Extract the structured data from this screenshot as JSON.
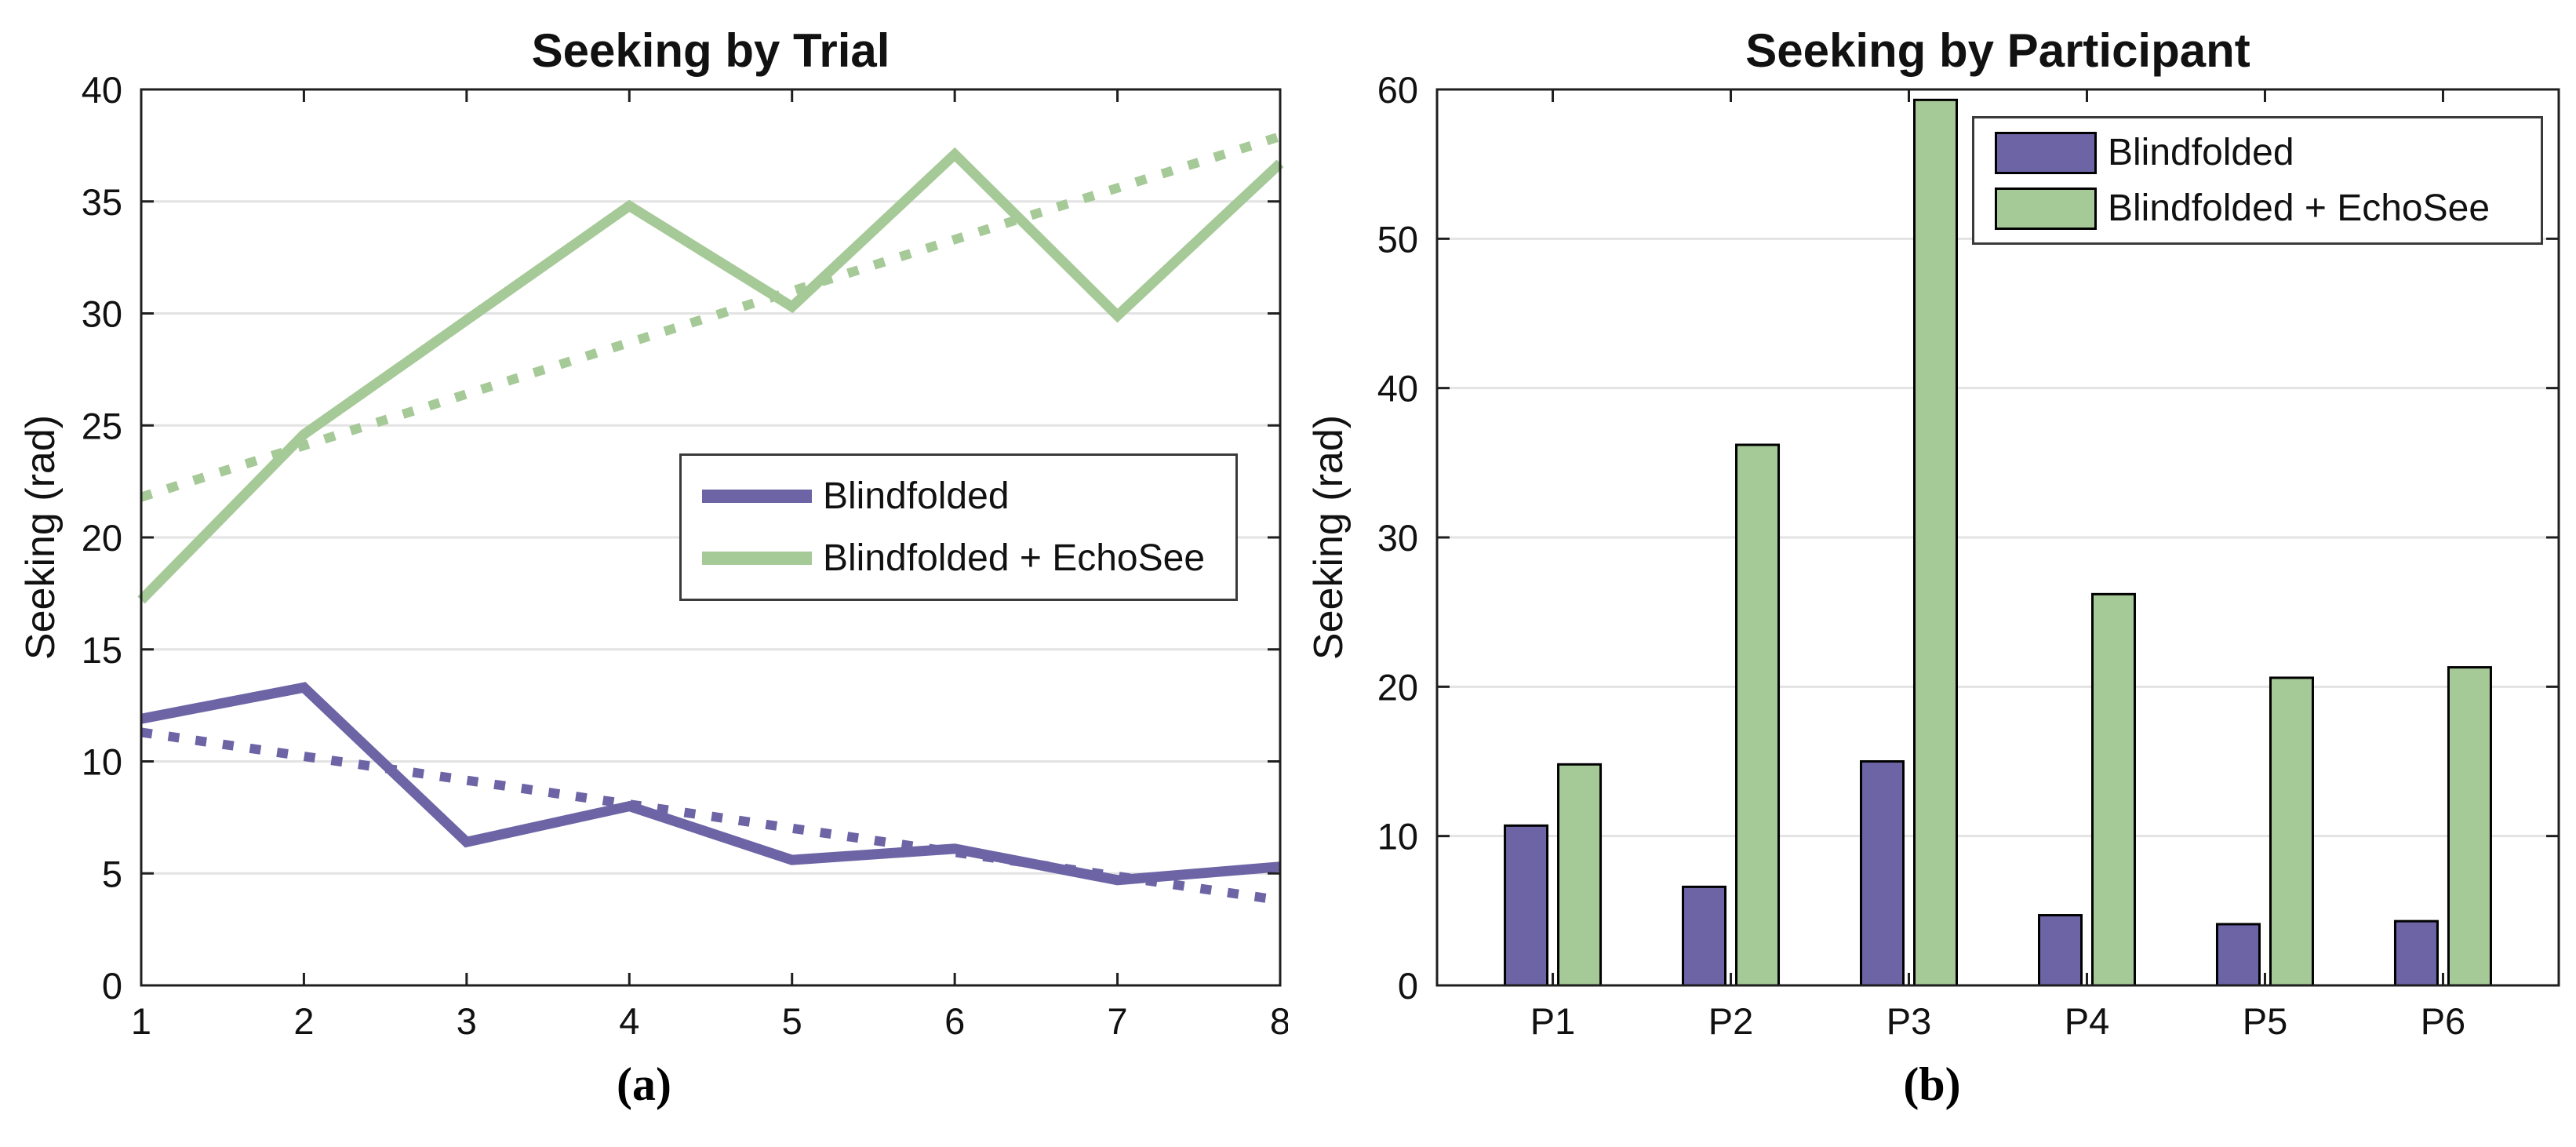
{
  "colors": {
    "purple": "#6C64A5",
    "green": "#A6C998",
    "grid": "#E3E3E3",
    "axis": "#1F1F1F",
    "bar_edge": "#000000",
    "text": "#111111"
  },
  "captions": {
    "a": "(a)",
    "b": "(b)"
  },
  "chart_data": [
    {
      "type": "line",
      "panel": "a",
      "title": "Seeking by Trial",
      "xlabel": "",
      "ylabel": "Seeking (rad)",
      "xlim": [
        1,
        8
      ],
      "ylim": [
        0,
        40
      ],
      "xticks": [
        1,
        2,
        3,
        4,
        5,
        6,
        7,
        8
      ],
      "yticks": [
        0,
        5,
        10,
        15,
        20,
        25,
        30,
        35,
        40
      ],
      "grid": "horizontal",
      "legend_position": "middle-right-inside",
      "series": [
        {
          "name": "Blindfolded",
          "line_style": "solid",
          "color": "purple",
          "in_legend": true,
          "x": [
            1,
            2,
            3,
            4,
            5,
            6,
            7,
            8
          ],
          "values": [
            11.9,
            13.3,
            6.4,
            8.0,
            5.6,
            6.1,
            4.7,
            5.3
          ]
        },
        {
          "name": "Blindfolded + EchoSee",
          "line_style": "solid",
          "color": "green",
          "in_legend": true,
          "x": [
            1,
            2,
            3,
            4,
            5,
            6,
            7,
            8
          ],
          "values": [
            17.2,
            24.6,
            29.7,
            34.8,
            30.3,
            37.1,
            29.9,
            36.7
          ]
        },
        {
          "name": "Blindfolded linear trend",
          "line_style": "dotted",
          "color": "purple",
          "in_legend": false,
          "x": [
            1,
            8
          ],
          "values": [
            11.3,
            3.8
          ]
        },
        {
          "name": "Blindfolded + EchoSee linear trend",
          "line_style": "dotted",
          "color": "green",
          "in_legend": false,
          "x": [
            1,
            8
          ],
          "values": [
            21.8,
            37.9
          ]
        }
      ]
    },
    {
      "type": "bar",
      "panel": "b",
      "title": "Seeking by Participant",
      "xlabel": "",
      "ylabel": "Seeking (rad)",
      "categories": [
        "P1",
        "P2",
        "P3",
        "P4",
        "P5",
        "P6"
      ],
      "ylim": [
        0,
        60
      ],
      "yticks": [
        0,
        10,
        20,
        30,
        40,
        50,
        60
      ],
      "grid": "horizontal",
      "legend_position": "top-right-inside",
      "series": [
        {
          "name": "Blindfolded",
          "color": "purple",
          "values": [
            10.7,
            6.6,
            15.0,
            4.7,
            4.1,
            4.3
          ]
        },
        {
          "name": "Blindfolded + EchoSee",
          "color": "green",
          "values": [
            14.8,
            36.2,
            59.3,
            26.2,
            20.6,
            21.3
          ]
        }
      ]
    }
  ]
}
